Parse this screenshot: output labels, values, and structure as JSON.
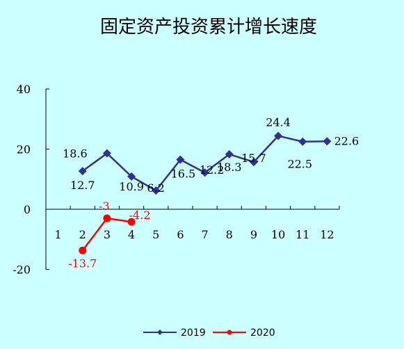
{
  "chart_data": {
    "type": "line",
    "title": "固定资产投资累计增长速度",
    "categories": [
      "1",
      "2",
      "3",
      "4",
      "5",
      "6",
      "7",
      "8",
      "9",
      "10",
      "11",
      "12"
    ],
    "y_ticks": [
      "40",
      "20",
      "0",
      "-20"
    ],
    "ylim": [
      -20,
      40
    ],
    "grid": false,
    "legend_position": "bottom",
    "series": [
      {
        "name": "2019",
        "color": "#2e3192",
        "marker": "diamond",
        "values": [
          null,
          12.7,
          18.6,
          10.9,
          6.2,
          16.5,
          12.2,
          18.3,
          15.7,
          24.4,
          22.5,
          22.6
        ],
        "labels": [
          null,
          "12.7",
          "18.6",
          "10.9",
          "6.2",
          "16.5",
          "12.2",
          "18.3",
          "15.7",
          "24.4",
          "22.5",
          "22.6"
        ]
      },
      {
        "name": "2020",
        "color": "#ff0000",
        "marker": "circle",
        "values": [
          null,
          -13.7,
          -3,
          -4.2,
          null,
          null,
          null,
          null,
          null,
          null,
          null,
          null
        ],
        "labels": [
          null,
          "-13.7",
          "-3",
          "-4.2",
          null,
          null,
          null,
          null,
          null,
          null,
          null,
          null
        ]
      }
    ]
  }
}
